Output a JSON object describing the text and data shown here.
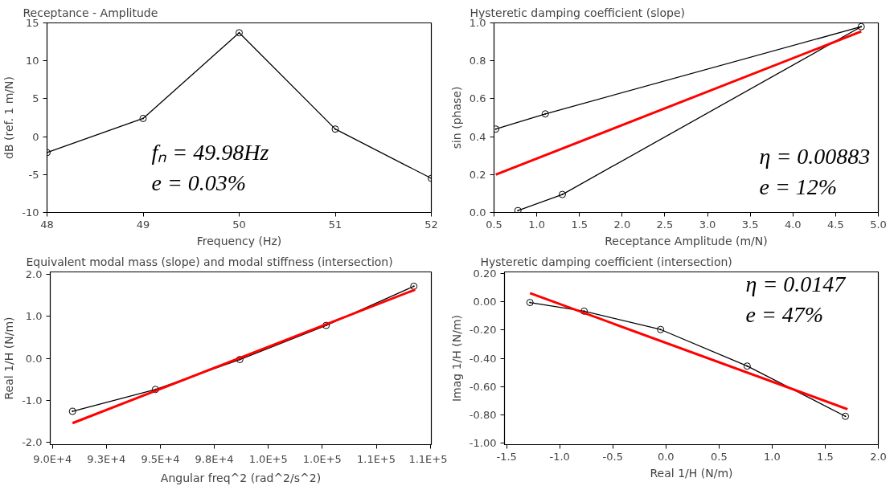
{
  "chart_data": [
    {
      "type": "line",
      "title": "Receptance - Amplitude",
      "xlabel": "Frequency (Hz)",
      "ylabel": "dB (ref. 1 m/N)",
      "xlim": [
        48,
        52
      ],
      "xticks": [
        48,
        49,
        50,
        51,
        52
      ],
      "ylim": [
        -10,
        15
      ],
      "yticks": [
        -10,
        -5,
        0,
        5,
        10,
        15
      ],
      "grid": false,
      "series": [
        {
          "color": "#000000",
          "marker": "circle",
          "x": [
            48,
            49,
            50,
            51,
            52
          ],
          "values": [
            -2.1,
            2.4,
            13.7,
            1.0,
            -5.5
          ]
        }
      ],
      "annotations": [
        "fₙ = 49.98Hz",
        "e = 0.03%"
      ]
    },
    {
      "type": "line",
      "title": "Hysteretic damping coefficient (slope)",
      "xlabel": "Receptance Amplitude (m/N)",
      "ylabel": "sin (phase)",
      "xlim": [
        0.5,
        5.0
      ],
      "xticks": [
        {
          "value": 0.5,
          "label": "0.5"
        },
        {
          "value": 1,
          "label": "1.0"
        },
        {
          "value": 1.5,
          "label": "1.5"
        },
        {
          "value": 2,
          "label": "2.0"
        },
        {
          "value": 2.5,
          "label": "2.5"
        },
        {
          "value": 3,
          "label": "3.0"
        },
        {
          "value": 3.5,
          "label": "3.5"
        },
        {
          "value": 4,
          "label": "4.0"
        },
        {
          "value": 4.5,
          "label": "4.5"
        },
        {
          "value": 5,
          "label": "5.0"
        }
      ],
      "ylim": [
        0,
        1.0
      ],
      "yticks": [
        {
          "value": 0,
          "label": "0.0"
        },
        {
          "value": 0.2,
          "label": "0.2"
        },
        {
          "value": 0.4,
          "label": "0.4"
        },
        {
          "value": 0.6,
          "label": "0.6"
        },
        {
          "value": 0.8,
          "label": "0.8"
        },
        {
          "value": 1,
          "label": "1.0"
        }
      ],
      "grid": false,
      "series": [
        {
          "color": "#000000",
          "marker": "circle",
          "x": [
            0.52,
            1.1,
            4.8,
            1.3,
            0.78
          ],
          "values": [
            0.44,
            0.52,
            0.98,
            0.095,
            0.01
          ]
        },
        {
          "color": "#ff0000",
          "marker": "none",
          "x": [
            0.52,
            4.8
          ],
          "values": [
            0.2,
            0.955
          ]
        }
      ],
      "annotations": [
        "η = 0.00883",
        "e = 12%"
      ]
    },
    {
      "type": "line",
      "title": "Equivalent modal mass (slope) and modal stiffness (intersection)",
      "xlabel": "Angular freq^2 (rad^2/s^2)",
      "ylabel": "Real 1/H (N/m)",
      "xlim": [
        89900,
        107550
      ],
      "xticks": [
        {
          "value": 90000,
          "label": "9.0E+4"
        },
        {
          "value": 92500,
          "label": "9.3E+4"
        },
        {
          "value": 95000,
          "label": "9.5E+4"
        },
        {
          "value": 97500,
          "label": "9.8E+4"
        },
        {
          "value": 100000,
          "label": "1.0E+5"
        },
        {
          "value": 102500,
          "label": "1.0E+5"
        },
        {
          "value": 105000,
          "label": "1.1E+5"
        },
        {
          "value": 107500,
          "label": "1.1E+5"
        }
      ],
      "ylim": [
        -2.05,
        2.05
      ],
      "yticks": [
        {
          "value": -2,
          "label": "-2.0"
        },
        {
          "value": -1,
          "label": "-1.0"
        },
        {
          "value": 0,
          "label": "0.0"
        },
        {
          "value": 1,
          "label": "1.0"
        },
        {
          "value": 2,
          "label": "2.0"
        }
      ],
      "grid": false,
      "series": [
        {
          "color": "#000000",
          "marker": "circle",
          "x": [
            90930,
            94770,
            98680,
            102680,
            106740
          ],
          "values": [
            -1.26,
            -0.74,
            -0.03,
            0.78,
            1.71
          ]
        },
        {
          "color": "#ff0000",
          "marker": "none",
          "x": [
            90930,
            106800
          ],
          "values": [
            -1.54,
            1.63
          ]
        }
      ]
    },
    {
      "type": "line",
      "title": "Hysteretic damping coefficient (intersection)",
      "xlabel": "Real 1/H (N/m)",
      "ylabel": "Imag 1/H (N/m)",
      "xlim": [
        -1.52,
        2.0
      ],
      "xticks": [
        {
          "value": -1.5,
          "label": "-1.5"
        },
        {
          "value": -1,
          "label": "-1.0"
        },
        {
          "value": -0.5,
          "label": "-0.5"
        },
        {
          "value": 0,
          "label": "0.0"
        },
        {
          "value": 0.5,
          "label": "0.5"
        },
        {
          "value": 1,
          "label": "1.0"
        },
        {
          "value": 1.5,
          "label": "1.5"
        },
        {
          "value": 2,
          "label": "2.0"
        }
      ],
      "ylim": [
        -1.01,
        0.21
      ],
      "yticks": [
        {
          "value": -1,
          "label": "-1.00"
        },
        {
          "value": -0.8,
          "label": "-0.80"
        },
        {
          "value": -0.6,
          "label": "-0.60"
        },
        {
          "value": -0.4,
          "label": "-0.40"
        },
        {
          "value": -0.2,
          "label": "-0.20"
        },
        {
          "value": 0,
          "label": "0.00"
        },
        {
          "value": 0.2,
          "label": "0.20"
        }
      ],
      "grid": false,
      "series": [
        {
          "color": "#000000",
          "marker": "circle",
          "x": [
            -1.28,
            -0.77,
            -0.05,
            0.765,
            1.69
          ],
          "values": [
            -0.006,
            -0.067,
            -0.197,
            -0.455,
            -0.81
          ]
        },
        {
          "color": "#ff0000",
          "marker": "none",
          "x": [
            -1.28,
            1.71
          ],
          "values": [
            0.06,
            -0.76
          ]
        }
      ],
      "annotations": [
        "η = 0.0147",
        "e = 47%"
      ]
    }
  ]
}
